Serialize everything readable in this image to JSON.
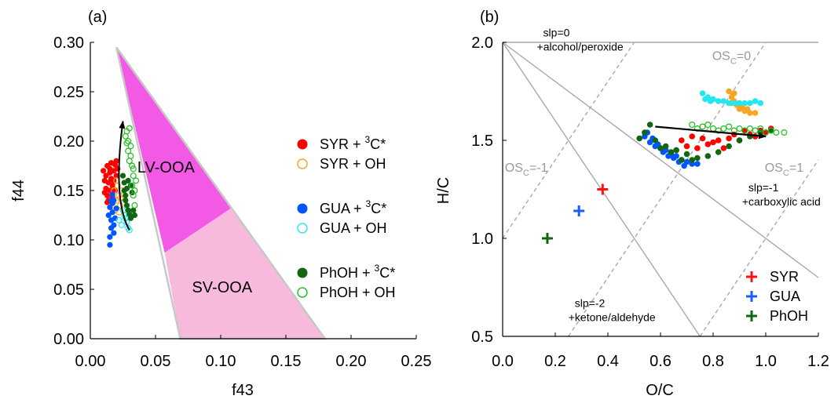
{
  "chart_data": [
    {
      "panel_label": "(a)",
      "type": "scatter",
      "xlabel": "f43",
      "ylabel": "f44",
      "xlim": [
        0.0,
        0.25
      ],
      "ylim": [
        0.0,
        0.3
      ],
      "xticks": [
        "0.00",
        "0.05",
        "0.10",
        "0.15",
        "0.20",
        "0.25"
      ],
      "yticks": [
        "0.00",
        "0.05",
        "0.10",
        "0.15",
        "0.20",
        "0.25",
        "0.30"
      ],
      "grid": false,
      "legend_position": "right",
      "regions": [
        {
          "label": "LV-OOA",
          "color": "#f25ae6",
          "polygon": [
            [
              0.02,
              0.295
            ],
            [
              0.108,
              0.132
            ],
            [
              0.057,
              0.087
            ]
          ]
        },
        {
          "label": "SV-OOA",
          "color": "#f7b9dc",
          "polygon": [
            [
              0.057,
              0.087
            ],
            [
              0.108,
              0.132
            ],
            [
              0.18,
              0.0
            ],
            [
              0.069,
              0.0
            ]
          ]
        }
      ],
      "triangle": [
        [
          0.02,
          0.295
        ],
        [
          0.18,
          0.0
        ],
        [
          0.069,
          0.0
        ]
      ],
      "triangle_color": "#c8c8c8",
      "arrow": [
        [
          0.03,
          0.11
        ],
        [
          0.017,
          0.14
        ],
        [
          0.025,
          0.22
        ]
      ],
      "series": [
        {
          "name": "SYR + ³C*",
          "color": "#ff0000",
          "marker": "filled",
          "points": [
            [
              0.01,
              0.17
            ],
            [
              0.011,
              0.16
            ],
            [
              0.012,
              0.152
            ],
            [
              0.012,
              0.165
            ],
            [
              0.013,
              0.145
            ],
            [
              0.013,
              0.175
            ],
            [
              0.014,
              0.158
            ],
            [
              0.014,
              0.14
            ],
            [
              0.015,
              0.168
            ],
            [
              0.015,
              0.15
            ],
            [
              0.016,
              0.162
            ],
            [
              0.016,
              0.178
            ],
            [
              0.017,
              0.155
            ],
            [
              0.017,
              0.143
            ],
            [
              0.018,
              0.17
            ],
            [
              0.018,
              0.16
            ],
            [
              0.019,
              0.176
            ],
            [
              0.019,
              0.15
            ],
            [
              0.02,
              0.165
            ],
            [
              0.02,
              0.18
            ],
            [
              0.021,
              0.172
            ],
            [
              0.011,
              0.148
            ],
            [
              0.013,
              0.138
            ],
            [
              0.015,
              0.172
            ]
          ]
        },
        {
          "name": "SYR + OH",
          "color": "#f5a623",
          "marker": "open",
          "points": [
            [
              0.018,
              0.15
            ],
            [
              0.02,
              0.14
            ],
            [
              0.021,
              0.155
            ],
            [
              0.022,
              0.145
            ],
            [
              0.023,
              0.135
            ],
            [
              0.024,
              0.15
            ],
            [
              0.019,
              0.13
            ],
            [
              0.022,
              0.128
            ],
            [
              0.02,
              0.16
            ],
            [
              0.023,
              0.142
            ]
          ]
        },
        {
          "name": "GUA + ³C*",
          "color": "#0055ff",
          "marker": "filled",
          "points": [
            [
              0.015,
              0.095
            ],
            [
              0.015,
              0.103
            ],
            [
              0.016,
              0.112
            ],
            [
              0.016,
              0.12
            ],
            [
              0.017,
              0.128
            ],
            [
              0.017,
              0.137
            ],
            [
              0.018,
              0.115
            ],
            [
              0.018,
              0.107
            ],
            [
              0.014,
              0.125
            ],
            [
              0.015,
              0.133
            ],
            [
              0.016,
              0.14
            ],
            [
              0.017,
              0.146
            ],
            [
              0.019,
              0.122
            ],
            [
              0.02,
              0.132
            ],
            [
              0.018,
              0.14
            ]
          ]
        },
        {
          "name": "GUA + OH",
          "color": "#22e6f0",
          "marker": "open",
          "points": [
            [
              0.022,
              0.12
            ],
            [
              0.024,
              0.115
            ],
            [
              0.026,
              0.125
            ],
            [
              0.028,
              0.118
            ],
            [
              0.029,
              0.112
            ],
            [
              0.03,
              0.11
            ],
            [
              0.025,
              0.13
            ],
            [
              0.027,
              0.122
            ]
          ]
        },
        {
          "name": "PhOH + ³C*",
          "color": "#116611",
          "marker": "filled",
          "points": [
            [
              0.025,
              0.165
            ],
            [
              0.026,
              0.158
            ],
            [
              0.026,
              0.15
            ],
            [
              0.027,
              0.145
            ],
            [
              0.027,
              0.14
            ],
            [
              0.028,
              0.135
            ],
            [
              0.029,
              0.13
            ],
            [
              0.03,
              0.126
            ],
            [
              0.031,
              0.122
            ],
            [
              0.032,
              0.148
            ],
            [
              0.031,
              0.155
            ],
            [
              0.029,
              0.16
            ],
            [
              0.033,
              0.13
            ],
            [
              0.034,
              0.125
            ],
            [
              0.028,
              0.152
            ]
          ]
        },
        {
          "name": "PhOH + OH",
          "color": "#22bb22",
          "marker": "open",
          "points": [
            [
              0.027,
              0.205
            ],
            [
              0.028,
              0.21
            ],
            [
              0.029,
              0.2
            ],
            [
              0.03,
              0.213
            ],
            [
              0.031,
              0.195
            ],
            [
              0.031,
              0.185
            ],
            [
              0.032,
              0.175
            ],
            [
              0.033,
              0.165
            ],
            [
              0.032,
              0.155
            ],
            [
              0.033,
              0.145
            ],
            [
              0.034,
              0.135
            ],
            [
              0.034,
              0.15
            ],
            [
              0.03,
              0.18
            ],
            [
              0.029,
              0.19
            ],
            [
              0.035,
              0.16
            ],
            [
              0.028,
              0.198
            ],
            [
              0.033,
              0.172
            ]
          ]
        }
      ]
    },
    {
      "panel_label": "(b)",
      "type": "scatter",
      "xlabel": "O/C",
      "ylabel": "H/C",
      "xlim": [
        0.0,
        1.2
      ],
      "ylim": [
        0.5,
        2.0
      ],
      "xticks": [
        "0.0",
        "0.2",
        "0.4",
        "0.6",
        "0.8",
        "1.0",
        "1.2"
      ],
      "yticks": [
        "0.5",
        "1.0",
        "1.5",
        "2.0"
      ],
      "grid": false,
      "legend_position": "bottom-right",
      "reference_lines": [
        {
          "style": "solid",
          "from": [
            0.0,
            2.0
          ],
          "to": [
            1.2,
            2.0
          ]
        },
        {
          "style": "solid",
          "from": [
            0.0,
            2.0
          ],
          "to": [
            1.2,
            0.8
          ]
        },
        {
          "style": "solid",
          "from": [
            0.0,
            2.0
          ],
          "to": [
            0.75,
            0.5
          ]
        },
        {
          "style": "dashed",
          "from": [
            0.0,
            1.0
          ],
          "to": [
            0.5,
            2.0
          ]
        },
        {
          "style": "dashed",
          "from": [
            0.25,
            0.5
          ],
          "to": [
            1.0,
            2.0
          ]
        },
        {
          "style": "dashed",
          "from": [
            0.75,
            0.5
          ],
          "to": [
            1.2,
            1.4
          ]
        }
      ],
      "annotations": [
        {
          "text_line1": "slp=0",
          "text_line2": "+alcohol/peroxide",
          "at": [
            0.13,
            2.03
          ]
        },
        {
          "text_line1": "slp=-1",
          "text_line2": "+carboxylic acid",
          "at": [
            0.91,
            1.24
          ]
        },
        {
          "text_line1": "slp=-2",
          "text_line2": "+ketone/aldehyde",
          "at": [
            0.25,
            0.65
          ]
        }
      ],
      "os_labels": [
        {
          "text": "OS",
          "sub": "C",
          "value": "=0",
          "at": [
            0.87,
            1.91
          ]
        },
        {
          "text": "OS",
          "sub": "C",
          "value": "=-1",
          "at": [
            0.09,
            1.34
          ]
        },
        {
          "text": "OS",
          "sub": "C",
          "value": "=1",
          "at": [
            1.07,
            1.34
          ]
        }
      ],
      "arrow": [
        [
          0.58,
          1.57
        ],
        [
          1.0,
          1.52
        ]
      ],
      "series_points": [
        {
          "name": "SYR",
          "color": "#ff1111",
          "marker": "cross",
          "points": [
            [
              0.38,
              1.25
            ]
          ]
        },
        {
          "name": "GUA",
          "color": "#1a5cff",
          "marker": "cross",
          "points": [
            [
              0.29,
              1.14
            ]
          ]
        },
        {
          "name": "PhOH",
          "color": "#116611",
          "marker": "cross",
          "points": [
            [
              0.17,
              1.0
            ]
          ]
        }
      ],
      "series": [
        {
          "name": "SYR + ³C*",
          "color": "#ff0000",
          "marker": "filled",
          "points": [
            [
              0.66,
              1.45
            ],
            [
              0.7,
              1.47
            ],
            [
              0.74,
              1.46
            ],
            [
              0.78,
              1.48
            ],
            [
              0.82,
              1.5
            ],
            [
              0.86,
              1.51
            ],
            [
              0.9,
              1.5
            ],
            [
              0.94,
              1.53
            ],
            [
              0.98,
              1.55
            ],
            [
              0.68,
              1.5
            ],
            [
              0.72,
              1.52
            ],
            [
              0.76,
              1.51
            ],
            [
              0.8,
              1.49
            ],
            [
              0.84,
              1.46
            ],
            [
              0.88,
              1.53
            ],
            [
              0.92,
              1.55
            ],
            [
              0.96,
              1.52
            ],
            [
              1.0,
              1.54
            ],
            [
              1.02,
              1.56
            ],
            [
              0.64,
              1.43
            ]
          ]
        },
        {
          "name": "SYR + OH",
          "color": "#f5a623",
          "marker": "filled",
          "points": [
            [
              0.86,
              1.75
            ],
            [
              0.87,
              1.72
            ],
            [
              0.88,
              1.7
            ],
            [
              0.89,
              1.68
            ],
            [
              0.9,
              1.66
            ],
            [
              0.92,
              1.65
            ],
            [
              0.94,
              1.64
            ],
            [
              0.96,
              1.64
            ],
            [
              0.87,
              1.69
            ],
            [
              0.88,
              1.74
            ],
            [
              0.91,
              1.67
            ],
            [
              0.93,
              1.66
            ]
          ]
        },
        {
          "name": "GUA + ³C*",
          "color": "#0055ff",
          "marker": "filled",
          "points": [
            [
              0.54,
              1.52
            ],
            [
              0.56,
              1.49
            ],
            [
              0.58,
              1.47
            ],
            [
              0.6,
              1.46
            ],
            [
              0.62,
              1.45
            ],
            [
              0.64,
              1.43
            ],
            [
              0.66,
              1.42
            ],
            [
              0.68,
              1.4
            ],
            [
              0.7,
              1.39
            ],
            [
              0.72,
              1.38
            ],
            [
              0.74,
              1.38
            ],
            [
              0.55,
              1.54
            ],
            [
              0.57,
              1.51
            ],
            [
              0.59,
              1.48
            ],
            [
              0.61,
              1.44
            ],
            [
              0.63,
              1.42
            ],
            [
              0.65,
              1.41
            ],
            [
              0.67,
              1.39
            ],
            [
              0.69,
              1.37
            ]
          ]
        },
        {
          "name": "GUA + OH",
          "color": "#22e6f0",
          "marker": "filled",
          "points": [
            [
              0.76,
              1.74
            ],
            [
              0.78,
              1.72
            ],
            [
              0.8,
              1.71
            ],
            [
              0.82,
              1.7
            ],
            [
              0.84,
              1.7
            ],
            [
              0.86,
              1.69
            ],
            [
              0.88,
              1.69
            ],
            [
              0.9,
              1.69
            ],
            [
              0.92,
              1.69
            ],
            [
              0.94,
              1.69
            ],
            [
              0.96,
              1.7
            ],
            [
              0.98,
              1.69
            ],
            [
              0.77,
              1.71
            ],
            [
              0.79,
              1.7
            ]
          ]
        },
        {
          "name": "PhOH + ³C*",
          "color": "#116611",
          "marker": "filled",
          "points": [
            [
              0.52,
              1.51
            ],
            [
              0.54,
              1.54
            ],
            [
              0.56,
              1.58
            ],
            [
              0.58,
              1.5
            ],
            [
              0.62,
              1.47
            ],
            [
              0.66,
              1.45
            ],
            [
              0.7,
              1.43
            ],
            [
              0.74,
              1.41
            ],
            [
              0.78,
              1.42
            ],
            [
              0.82,
              1.44
            ],
            [
              0.86,
              1.47
            ],
            [
              0.9,
              1.5
            ],
            [
              0.94,
              1.52
            ],
            [
              0.98,
              1.54
            ],
            [
              1.02,
              1.55
            ],
            [
              0.6,
              1.46
            ],
            [
              0.64,
              1.44
            ],
            [
              0.68,
              1.4
            ],
            [
              0.72,
              1.4
            ]
          ]
        },
        {
          "name": "PhOH + OH",
          "color": "#22bb22",
          "marker": "open",
          "points": [
            [
              0.72,
              1.58
            ],
            [
              0.76,
              1.57
            ],
            [
              0.8,
              1.56
            ],
            [
              0.84,
              1.56
            ],
            [
              0.88,
              1.55
            ],
            [
              0.92,
              1.55
            ],
            [
              0.96,
              1.55
            ],
            [
              1.0,
              1.54
            ],
            [
              1.04,
              1.54
            ],
            [
              1.07,
              1.54
            ],
            [
              0.74,
              1.56
            ],
            [
              0.78,
              1.58
            ],
            [
              0.82,
              1.55
            ],
            [
              0.86,
              1.57
            ],
            [
              0.9,
              1.56
            ],
            [
              0.94,
              1.56
            ],
            [
              0.98,
              1.56
            ],
            [
              1.02,
              1.55
            ]
          ]
        }
      ]
    }
  ]
}
